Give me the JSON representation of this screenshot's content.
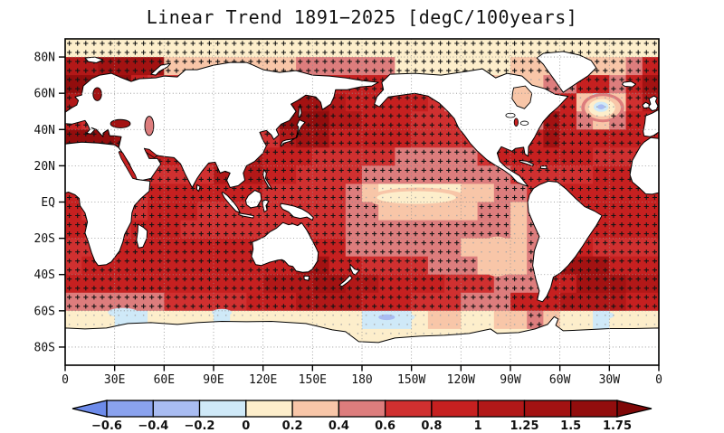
{
  "title": "Linear Trend 1891−2025 [degC/100years]",
  "axes": {
    "lat_ticks": [
      {
        "label": "80N",
        "lat": 80
      },
      {
        "label": "60N",
        "lat": 60
      },
      {
        "label": "40N",
        "lat": 40
      },
      {
        "label": "20N",
        "lat": 20
      },
      {
        "label": "EQ",
        "lat": 0
      },
      {
        "label": "20S",
        "lat": -20
      },
      {
        "label": "40S",
        "lat": -40
      },
      {
        "label": "60S",
        "lat": -60
      },
      {
        "label": "80S",
        "lat": -80
      }
    ],
    "lon_ticks": [
      {
        "label": "0",
        "lon": 0
      },
      {
        "label": "30E",
        "lon": 30
      },
      {
        "label": "60E",
        "lon": 60
      },
      {
        "label": "90E",
        "lon": 90
      },
      {
        "label": "120E",
        "lon": 120
      },
      {
        "label": "150E",
        "lon": 150
      },
      {
        "label": "180",
        "lon": 180
      },
      {
        "label": "150W",
        "lon": 210
      },
      {
        "label": "120W",
        "lon": 240
      },
      {
        "label": "90W",
        "lon": 270
      },
      {
        "label": "60W",
        "lon": 300
      },
      {
        "label": "30W",
        "lon": 330
      },
      {
        "label": "0",
        "lon": 360
      }
    ]
  },
  "colorbar": {
    "levels": [
      -0.6,
      -0.4,
      -0.2,
      0,
      0.2,
      0.4,
      0.6,
      0.8,
      1,
      1.25,
      1.5,
      1.75
    ],
    "labels": [
      "−0.6",
      "−0.4",
      "−0.2",
      "0",
      "0.2",
      "0.4",
      "0.6",
      "0.8",
      "1",
      "1.25",
      "1.5",
      "1.75"
    ],
    "colors": [
      "#6d8bea",
      "#8aa2ee",
      "#a9bcf2",
      "#cfe9f8",
      "#fdeecb",
      "#f8c6a8",
      "#dd7d7d",
      "#d03030",
      "#c62020",
      "#b21818",
      "#a31212",
      "#920d0d",
      "#7f0808"
    ]
  },
  "chart_data": {
    "type": "heatmap",
    "title": "Linear Trend 1891−2025 [degC/100years]",
    "units": "degC/100years",
    "projection": "equirectangular, pacific-centered, lon 0E to 360E left to right, lat 90N top to 90S bottom",
    "legend_position": "bottom horizontal colorbar with open-ended triangles",
    "grid": {
      "lon_start": 0,
      "lon_step": 10,
      "lat_start": 90,
      "lat_step": -10,
      "rows": 18,
      "cols": 36
    },
    "values": [
      [
        0.1,
        0.1,
        0.1,
        0.1,
        0.1,
        0.1,
        0.1,
        0.1,
        0.1,
        0.1,
        0.1,
        0.1,
        0.1,
        0.1,
        0.1,
        0.1,
        0.1,
        0.1,
        0.1,
        0.1,
        0.1,
        0.1,
        0.1,
        0.1,
        0.1,
        0.1,
        0.1,
        0.1,
        0.1,
        0.1,
        0.1,
        0.1,
        0.1,
        0.1,
        0.1,
        0.1
      ],
      [
        1.1,
        1.1,
        1.4,
        1.4,
        1.4,
        1.4,
        0.3,
        0.3,
        0.3,
        0.3,
        0.3,
        0.3,
        0.3,
        0.3,
        0.5,
        0.5,
        0.5,
        0.5,
        0.5,
        0.5,
        0.1,
        0.1,
        0.1,
        0.1,
        0.1,
        0.1,
        0.1,
        0.3,
        0.3,
        0.3,
        0.3,
        0.3,
        0.3,
        0.3,
        0.5,
        0.9
      ],
      [
        1.6,
        1.6,
        1.6,
        1.6,
        0.9,
        0.7,
        0.7,
        0.7,
        0.7,
        0.7,
        0.7,
        0.7,
        0.7,
        0.7,
        0.9,
        0.9,
        0.9,
        0.9,
        0.9,
        0.9,
        0.5,
        0.5,
        0.5,
        0.5,
        0.5,
        0.5,
        0.3,
        0.3,
        0.3,
        0.5,
        0.5,
        0.9,
        0.9,
        0.5,
        0.9,
        1.4
      ],
      [
        1.1,
        1.1,
        0.9,
        0.7,
        0.7,
        0.7,
        0.7,
        0.7,
        0.7,
        0.7,
        0.7,
        0.7,
        0.7,
        1.4,
        1.4,
        1.4,
        1.1,
        0.9,
        0.9,
        0.9,
        0.9,
        0.9,
        0.7,
        0.5,
        0.5,
        0.5,
        0.3,
        0.3,
        0.7,
        0.7,
        0.9,
        0.3,
        -0.1,
        0.3,
        0.7,
        1.1
      ],
      [
        0.9,
        0.7,
        0.7,
        1.4,
        1.4,
        0.9,
        0.9,
        0.7,
        0.7,
        0.7,
        0.7,
        0.7,
        0.7,
        1.6,
        1.6,
        1.6,
        1.1,
        1.1,
        0.9,
        0.9,
        0.9,
        0.7,
        0.7,
        0.7,
        0.5,
        0.5,
        0.5,
        0.5,
        0.5,
        1.4,
        0.9,
        0.5,
        0.3,
        0.5,
        0.9,
        0.9
      ],
      [
        1.6,
        1.6,
        1.6,
        1.4,
        1.1,
        0.9,
        0.7,
        0.7,
        0.7,
        0.7,
        0.7,
        0.7,
        0.7,
        1.1,
        1.4,
        1.4,
        0.9,
        0.9,
        0.9,
        0.9,
        0.9,
        0.7,
        0.7,
        0.7,
        0.7,
        0.5,
        0.5,
        0.5,
        0.9,
        1.4,
        0.9,
        0.9,
        0.9,
        0.9,
        0.9,
        0.9
      ],
      [
        0.7,
        0.7,
        0.7,
        0.9,
        0.9,
        0.9,
        0.9,
        0.9,
        0.9,
        1.1,
        1.1,
        1.1,
        0.9,
        0.9,
        0.9,
        0.7,
        0.7,
        0.7,
        0.7,
        0.7,
        0.5,
        0.5,
        0.5,
        0.5,
        0.5,
        0.7,
        0.9,
        0.9,
        0.9,
        0.9,
        0.9,
        0.9,
        0.7,
        0.7,
        0.7,
        0.7
      ],
      [
        0.7,
        0.7,
        0.7,
        0.7,
        0.7,
        0.7,
        0.7,
        0.7,
        0.7,
        1.1,
        1.1,
        1.1,
        0.9,
        0.9,
        0.7,
        0.7,
        0.7,
        0.7,
        0.5,
        0.5,
        0.5,
        0.5,
        0.5,
        0.5,
        0.5,
        0.5,
        0.5,
        0.7,
        0.7,
        0.7,
        0.7,
        0.7,
        0.9,
        0.9,
        0.9,
        0.7
      ],
      [
        0.9,
        0.7,
        0.7,
        0.7,
        0.7,
        0.9,
        0.9,
        0.9,
        0.9,
        0.9,
        0.9,
        0.9,
        0.7,
        0.7,
        0.7,
        0.7,
        0.7,
        0.5,
        0.3,
        0.1,
        0.1,
        0.1,
        0.1,
        0.1,
        0.3,
        0.3,
        0.5,
        0.5,
        0.7,
        0.7,
        0.9,
        0.9,
        0.9,
        0.9,
        0.9,
        0.9
      ],
      [
        0.9,
        0.7,
        0.7,
        0.7,
        0.7,
        0.9,
        0.9,
        0.9,
        0.7,
        0.7,
        0.7,
        0.7,
        0.7,
        0.7,
        0.7,
        0.7,
        0.7,
        0.5,
        0.5,
        0.3,
        0.3,
        0.3,
        0.3,
        0.3,
        0.3,
        0.5,
        0.5,
        0.3,
        0.5,
        0.9,
        0.9,
        0.9,
        0.9,
        0.9,
        0.9,
        0.9
      ],
      [
        0.9,
        0.9,
        0.7,
        0.7,
        0.9,
        0.9,
        0.9,
        0.7,
        0.7,
        0.7,
        0.7,
        0.7,
        0.7,
        0.7,
        0.7,
        0.7,
        0.7,
        0.5,
        0.5,
        0.5,
        0.5,
        0.5,
        0.5,
        0.5,
        0.5,
        0.5,
        0.5,
        0.3,
        0.5,
        0.9,
        0.9,
        0.9,
        0.9,
        0.9,
        0.9,
        0.9
      ],
      [
        0.7,
        0.7,
        0.7,
        0.9,
        0.9,
        0.9,
        0.9,
        0.9,
        0.9,
        0.9,
        0.9,
        0.9,
        0.7,
        0.7,
        0.7,
        0.9,
        0.9,
        0.5,
        0.5,
        0.5,
        0.5,
        0.5,
        0.5,
        0.5,
        0.3,
        0.3,
        0.3,
        0.3,
        0.5,
        0.9,
        0.9,
        0.9,
        0.7,
        0.7,
        0.7,
        0.7
      ],
      [
        0.7,
        0.9,
        0.9,
        0.9,
        0.9,
        0.9,
        0.9,
        0.9,
        0.9,
        0.9,
        0.9,
        0.9,
        0.9,
        0.9,
        1.4,
        1.4,
        0.9,
        0.9,
        0.7,
        0.7,
        0.7,
        0.7,
        0.5,
        0.5,
        0.5,
        0.3,
        0.3,
        0.3,
        0.5,
        0.7,
        1.4,
        1.4,
        1.4,
        0.9,
        0.9,
        0.9
      ],
      [
        0.9,
        0.9,
        0.9,
        0.9,
        0.9,
        0.9,
        0.9,
        0.9,
        0.9,
        0.9,
        0.9,
        0.9,
        1.1,
        1.1,
        1.1,
        1.4,
        1.4,
        1.1,
        1.1,
        0.9,
        0.9,
        0.9,
        0.9,
        0.7,
        0.7,
        0.7,
        0.5,
        0.5,
        0.5,
        0.9,
        0.9,
        1.4,
        1.4,
        1.4,
        1.1,
        1.1
      ],
      [
        0.5,
        0.5,
        0.5,
        0.5,
        0.5,
        0.5,
        0.7,
        0.7,
        0.7,
        0.7,
        0.7,
        0.9,
        0.9,
        0.9,
        1.1,
        1.1,
        1.1,
        1.1,
        0.9,
        0.9,
        0.9,
        0.7,
        0.7,
        0.7,
        0.5,
        0.5,
        0.5,
        0.9,
        0.9,
        0.9,
        1.1,
        1.1,
        1.1,
        1.1,
        0.9,
        0.9
      ],
      [
        0.1,
        0.1,
        0.1,
        -0.1,
        -0.1,
        0.1,
        0.1,
        0.1,
        0.1,
        -0.1,
        0.1,
        0.1,
        0.1,
        0.1,
        0.1,
        0.1,
        0.1,
        0.1,
        -0.1,
        -0.1,
        -0.1,
        0.1,
        0.3,
        0.3,
        0.1,
        0.1,
        0.3,
        0.3,
        0.5,
        0.3,
        0.1,
        0.1,
        -0.1,
        0.1,
        0.1,
        0.1
      ],
      [
        0.1,
        0.1,
        0.1,
        0.1,
        0.1,
        0.1,
        0.1,
        0.1,
        0.1,
        0.1,
        0.1,
        0.1,
        0.1,
        0.1,
        0.1,
        0.1,
        0.1,
        0.1,
        0.1,
        0.1,
        0.1,
        0.1,
        0.1,
        0.1,
        0.1,
        0.1,
        0.1,
        0.1,
        0.1,
        0.1,
        0.1,
        0.1,
        0.1,
        0.1,
        0.1,
        0.1
      ],
      [
        0.1,
        0.1,
        0.1,
        0.1,
        0.1,
        0.1,
        0.1,
        0.1,
        0.1,
        0.1,
        0.1,
        0.1,
        0.1,
        0.1,
        0.1,
        0.1,
        0.1,
        0.1,
        0.1,
        0.1,
        0.1,
        0.1,
        0.1,
        0.1,
        0.1,
        0.1,
        0.1,
        0.1,
        0.1,
        0.1,
        0.1,
        0.1,
        0.1,
        0.1,
        0.1,
        0.1
      ]
    ],
    "features": [
      {
        "name": "north-atlantic-warming-hole-ring",
        "lon": 326,
        "lat": 52,
        "rlon": 13,
        "rlat": 8,
        "value": 0.5
      },
      {
        "name": "north-atlantic-warming-hole-peach",
        "lon": 326,
        "lat": 52,
        "rlon": 11,
        "rlat": 6.5,
        "value": 0.3
      },
      {
        "name": "north-atlantic-warming-hole-cream",
        "lon": 325.5,
        "lat": 52,
        "rlon": 8,
        "rlat": 4.8,
        "value": 0.1
      },
      {
        "name": "north-atlantic-warming-hole-core",
        "lon": 325,
        "lat": 52.5,
        "rlon": 4.5,
        "rlat": 2.8,
        "value": -0.1
      },
      {
        "name": "north-atlantic-warming-hole-center",
        "lon": 325,
        "lat": 52.5,
        "rlon": 2.2,
        "rlat": 1.4,
        "value": -0.3
      },
      {
        "name": "equatorial-pacific-peach-tongue",
        "lon": 214,
        "lat": 2,
        "rlon": 30,
        "rlat": 6,
        "value": 0.3
      },
      {
        "name": "equatorial-pacific-cream-tongue",
        "lon": 213,
        "lat": 2.5,
        "rlon": 24,
        "rlat": 3.5,
        "value": 0.1
      },
      {
        "name": "us-east-coast-cool-spot",
        "lon": 280.5,
        "lat": 34.5,
        "rlon": 2.4,
        "rlat": 2,
        "value": -0.1
      },
      {
        "name": "southeast-pacific-cream-patch",
        "lon": 262,
        "lat": -30,
        "rlon": 12,
        "rlat": 11,
        "value": 0.3
      },
      {
        "name": "southern-ocean-blue-patch-30e",
        "lon": 35,
        "lat": -61,
        "rlon": 9,
        "rlat": 2.6,
        "value": -0.1
      },
      {
        "name": "southern-ocean-blue-patch-95e",
        "lon": 95,
        "lat": -61,
        "rlon": 6,
        "rlat": 2,
        "value": -0.1
      },
      {
        "name": "southern-ocean-blue-patch-pacific",
        "lon": 198,
        "lat": -63.5,
        "rlon": 14,
        "rlat": 3,
        "value": -0.1
      },
      {
        "name": "southern-ocean-blue-core-pacific",
        "lon": 195,
        "lat": -63.5,
        "rlon": 5,
        "rlat": 1.6,
        "value": -0.3
      },
      {
        "name": "southern-ocean-blue-patch-atlantic",
        "lon": 327,
        "lat": -62.5,
        "rlon": 6,
        "rlat": 2,
        "value": -0.1
      }
    ],
    "stipple_note": "black + marks where trend is significant; small gray dots elsewhere; dotted gray graticule at labeled ticks"
  }
}
